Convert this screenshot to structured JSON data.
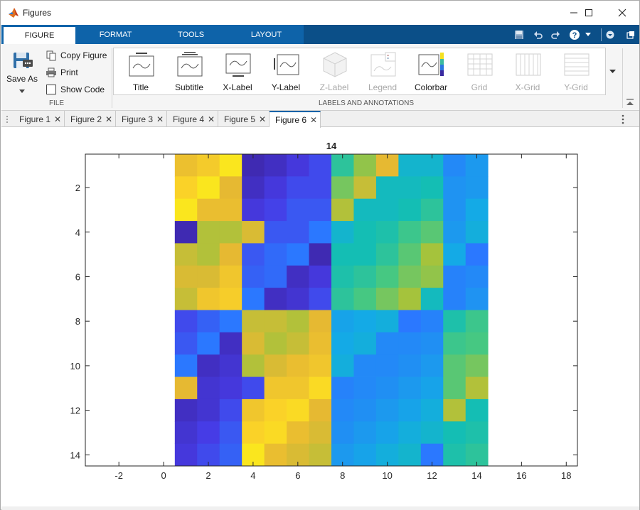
{
  "window": {
    "title": "Figures",
    "controls": {
      "minimize": "minimize",
      "maximize": "maximize",
      "close": "close"
    }
  },
  "ribbon_tabs": [
    {
      "label": "FIGURE",
      "active": true
    },
    {
      "label": "FORMAT",
      "active": false
    },
    {
      "label": "TOOLS",
      "active": false
    },
    {
      "label": "LAYOUT",
      "active": false
    }
  ],
  "quick_access": [
    "save-icon",
    "undo-icon",
    "redo-icon",
    "help-icon",
    "chevron-down-icon",
    "dropdown-icon",
    "undock-icon"
  ],
  "file_section": {
    "save_as": "Save As",
    "copy_figure": "Copy Figure",
    "print": "Print",
    "show_code": "Show Code",
    "label": "FILE"
  },
  "labels_section": {
    "label": "LABELS AND ANNOTATIONS",
    "items": [
      {
        "label": "Title",
        "icon": "title-icon",
        "enabled": true
      },
      {
        "label": "Subtitle",
        "icon": "subtitle-icon",
        "enabled": true
      },
      {
        "label": "X-Label",
        "icon": "xlabel-icon",
        "enabled": true
      },
      {
        "label": "Y-Label",
        "icon": "ylabel-icon",
        "enabled": true
      },
      {
        "label": "Z-Label",
        "icon": "zlabel-icon",
        "enabled": false
      },
      {
        "label": "Legend",
        "icon": "legend-icon",
        "enabled": false
      },
      {
        "label": "Colorbar",
        "icon": "colorbar-icon",
        "enabled": true
      },
      {
        "label": "Grid",
        "icon": "grid-icon",
        "enabled": false
      },
      {
        "label": "X-Grid",
        "icon": "xgrid-icon",
        "enabled": false
      },
      {
        "label": "Y-Grid",
        "icon": "ygrid-icon",
        "enabled": false
      }
    ]
  },
  "figure_tabs": [
    {
      "label": "Figure 1",
      "active": false
    },
    {
      "label": "Figure 2",
      "active": false
    },
    {
      "label": "Figure 3",
      "active": false
    },
    {
      "label": "Figure 4",
      "active": false
    },
    {
      "label": "Figure 5",
      "active": false
    },
    {
      "label": "Figure 6",
      "active": true
    }
  ],
  "close_glyph": "✕",
  "chart_data": {
    "type": "heatmap",
    "title": "14",
    "xlabel": "",
    "ylabel": "",
    "xlim": [
      -3.5,
      18.5
    ],
    "ylim": [
      0.5,
      14.5
    ],
    "y_reversed": true,
    "xticks": [
      -2,
      0,
      2,
      4,
      6,
      8,
      10,
      12,
      14,
      16,
      18
    ],
    "yticks": [
      2,
      4,
      6,
      8,
      10,
      12,
      14
    ],
    "colormap": "parula",
    "x_cells": [
      1,
      2,
      3,
      4,
      5,
      6,
      7,
      8,
      9,
      10,
      11,
      12,
      13,
      14
    ],
    "y_cells": [
      1,
      2,
      3,
      4,
      5,
      6,
      7,
      8,
      9,
      10,
      11,
      12,
      13,
      14
    ],
    "values": [
      [
        0.83,
        0.87,
        0.95,
        0.02,
        0.05,
        0.1,
        0.15,
        0.55,
        0.68,
        0.8,
        0.45,
        0.45,
        0.3,
        0.35
      ],
      [
        0.9,
        0.95,
        0.8,
        0.05,
        0.1,
        0.15,
        0.15,
        0.65,
        0.75,
        0.48,
        0.48,
        0.5,
        0.33,
        0.35
      ],
      [
        0.95,
        0.82,
        0.82,
        0.1,
        0.13,
        0.18,
        0.18,
        0.72,
        0.48,
        0.48,
        0.5,
        0.55,
        0.33,
        0.4
      ],
      [
        0.02,
        0.72,
        0.72,
        0.78,
        0.18,
        0.18,
        0.25,
        0.45,
        0.5,
        0.52,
        0.58,
        0.62,
        0.35,
        0.42
      ],
      [
        0.75,
        0.72,
        0.8,
        0.18,
        0.22,
        0.25,
        0.02,
        0.5,
        0.5,
        0.55,
        0.62,
        0.7,
        0.4,
        0.25
      ],
      [
        0.78,
        0.78,
        0.85,
        0.2,
        0.22,
        0.05,
        0.1,
        0.52,
        0.55,
        0.6,
        0.65,
        0.68,
        0.28,
        0.3
      ],
      [
        0.75,
        0.85,
        0.88,
        0.25,
        0.05,
        0.08,
        0.15,
        0.55,
        0.6,
        0.65,
        0.7,
        0.48,
        0.28,
        0.33
      ],
      [
        0.15,
        0.2,
        0.25,
        0.75,
        0.75,
        0.72,
        0.8,
        0.38,
        0.4,
        0.42,
        0.25,
        0.28,
        0.52,
        0.58
      ],
      [
        0.18,
        0.25,
        0.05,
        0.78,
        0.72,
        0.75,
        0.82,
        0.4,
        0.42,
        0.3,
        0.3,
        0.32,
        0.58,
        0.6
      ],
      [
        0.25,
        0.05,
        0.08,
        0.72,
        0.78,
        0.82,
        0.85,
        0.42,
        0.3,
        0.3,
        0.32,
        0.35,
        0.62,
        0.65
      ],
      [
        0.8,
        0.08,
        0.1,
        0.15,
        0.85,
        0.85,
        0.92,
        0.28,
        0.3,
        0.32,
        0.35,
        0.38,
        0.62,
        0.72
      ],
      [
        0.05,
        0.08,
        0.15,
        0.85,
        0.9,
        0.92,
        0.8,
        0.3,
        0.32,
        0.35,
        0.38,
        0.42,
        0.72,
        0.5
      ],
      [
        0.08,
        0.12,
        0.18,
        0.9,
        0.92,
        0.82,
        0.78,
        0.32,
        0.35,
        0.38,
        0.42,
        0.45,
        0.5,
        0.52
      ],
      [
        0.1,
        0.15,
        0.2,
        0.95,
        0.82,
        0.78,
        0.75,
        0.35,
        0.38,
        0.42,
        0.45,
        0.25,
        0.52,
        0.55
      ]
    ]
  },
  "colors": {
    "ribbon_blue": "#0e63a9",
    "ribbon_dark": "#0b4f88",
    "accent": "#0e63a9"
  }
}
